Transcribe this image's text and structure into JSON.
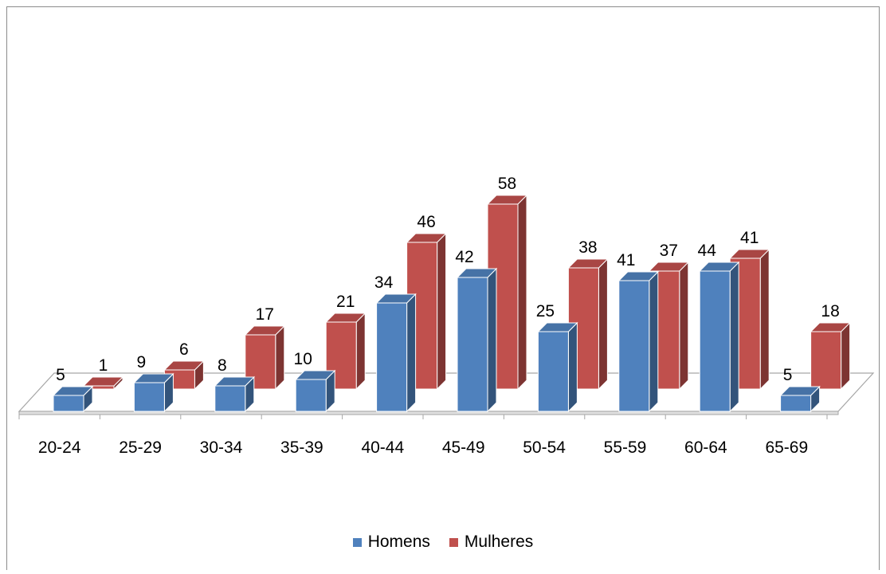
{
  "chart_data": {
    "type": "bar",
    "categories": [
      "20-24",
      "25-29",
      "30-34",
      "35-39",
      "40-44",
      "45-49",
      "50-54",
      "55-59",
      "60-64",
      "65-69"
    ],
    "series": [
      {
        "name": "Homens",
        "values": [
          5,
          9,
          8,
          10,
          34,
          42,
          25,
          41,
          44,
          5
        ],
        "color": "#4F81BD"
      },
      {
        "name": "Mulheres",
        "values": [
          1,
          6,
          17,
          21,
          46,
          58,
          38,
          37,
          41,
          18
        ],
        "color": "#C0504D"
      }
    ],
    "legend": "bottom",
    "grid": false
  }
}
